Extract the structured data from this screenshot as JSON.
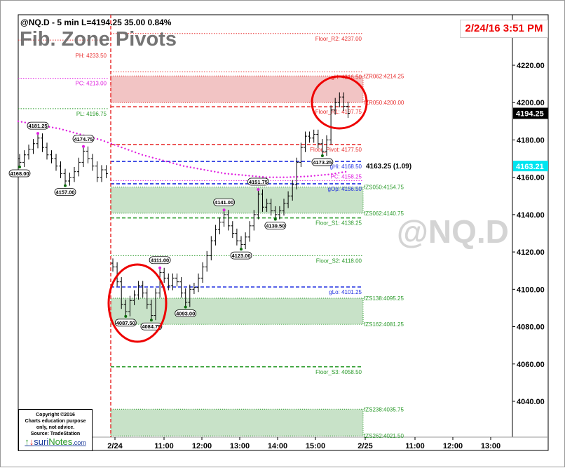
{
  "header": {
    "symbol_line": "@NQ.D - 5 min  L=4194.25  35.00  0.84%",
    "title": "Fib. Zone Pivots",
    "timestamp": "2/24/16 3:51 PM",
    "watermark": "@NQ.D"
  },
  "copyright": {
    "lines": [
      "Copyright ©2016",
      "Charts education purpose",
      "only, not advice.",
      "Source: TradeStation"
    ],
    "logo_a": "suri",
    "logo_b": "Notes",
    "logo_c": ".com"
  },
  "chart_data": {
    "type": "ohlc-bar",
    "ylim": [
      4017,
      4237
    ],
    "y_ticks": [
      "4220.00",
      "4200.00",
      "4180.00",
      "4160.00",
      "4140.00",
      "4120.00",
      "4100.00",
      "4080.00",
      "4060.00",
      "4040.00"
    ],
    "x_ticks": [
      "2/24",
      "11:00",
      "12:00",
      "13:00",
      "14:00",
      "15:00",
      "2/25",
      "11:00",
      "12:00",
      "13:00"
    ],
    "last_price": "4194.25",
    "ma_value": "4163.21",
    "colors": {
      "resistance": "#e83030",
      "support": "#2a9a2a",
      "gann": "#2030e0",
      "ma": "#e020e0",
      "res_zone": "#f2c4c4",
      "sup_zone": "#c8e2c8",
      "last_cyan": "#00e5f0"
    },
    "prior_day_closes": [
      4168,
      4172,
      4175,
      4178,
      4181,
      4176,
      4172,
      4170,
      4166,
      4162,
      4158,
      4160,
      4163,
      4168,
      4174,
      4170,
      4166,
      4160,
      4164,
      4162
    ],
    "today_closes": [
      4112,
      4104,
      4092,
      4088,
      4094,
      4097,
      4102,
      4098,
      4092,
      4086,
      4098,
      4109,
      4106,
      4102,
      4106,
      4104,
      4098,
      4093,
      4100,
      4101,
      4106,
      4112,
      4118,
      4126,
      4132,
      4136,
      4140,
      4134,
      4130,
      4126,
      4124,
      4128,
      4134,
      4140,
      4151,
      4144,
      4146,
      4142,
      4140,
      4142,
      4146,
      4150,
      4156,
      4168,
      4176,
      4182,
      4181,
      4183,
      4178,
      4174,
      4180,
      4196,
      4200,
      4203,
      4198,
      4194.25
    ],
    "ma_points": [
      4190,
      4188,
      4186,
      4183,
      4180,
      4176,
      4172,
      4169,
      4166,
      4164,
      4162,
      4161,
      4160,
      4160,
      4160.5,
      4161.5,
      4163.21
    ],
    "swing_labels": [
      {
        "t": "prior",
        "i": 4,
        "v": "4181.25",
        "kind": "high"
      },
      {
        "t": "prior",
        "i": 10,
        "v": "4157.00",
        "kind": "low"
      },
      {
        "t": "prior",
        "i": 14,
        "v": "4174.75",
        "kind": "high"
      },
      {
        "t": "prior",
        "i": 0,
        "v": "4168.00",
        "kind": "low"
      },
      {
        "t": "today",
        "i": 3,
        "v": "4087.50",
        "kind": "low"
      },
      {
        "t": "today",
        "i": 9,
        "v": "4084.75",
        "kind": "low"
      },
      {
        "t": "today",
        "i": 11,
        "v": "4111.00",
        "kind": "high"
      },
      {
        "t": "today",
        "i": 17,
        "v": "4093.00",
        "kind": "low"
      },
      {
        "t": "today",
        "i": 26,
        "v": "4141.00",
        "kind": "high"
      },
      {
        "t": "today",
        "i": 30,
        "v": "4123.00",
        "kind": "low"
      },
      {
        "t": "today",
        "i": 34,
        "v": "4151.75",
        "kind": "high"
      },
      {
        "t": "today",
        "i": 38,
        "v": "4139.50",
        "kind": "low"
      },
      {
        "t": "today",
        "i": 49,
        "v": "4173.25",
        "kind": "low"
      }
    ],
    "prior_levels": [
      {
        "label": "PH: 4233.50",
        "value": 4233.5,
        "color": "resistance"
      },
      {
        "label": "PC: 4213.00",
        "value": 4213.0,
        "color": "ma"
      },
      {
        "label": "PL: 4196.75",
        "value": 4196.75,
        "color": "support"
      }
    ],
    "levels": [
      {
        "label": "Floor_R2: 4237.00",
        "value": 4237.0,
        "color": "resistance",
        "style": "dot"
      },
      {
        "label": "gH: 4216.50",
        "value": 4216.5,
        "color": "resistance",
        "style": "dot"
      },
      {
        "label": "Floor_R1: 4197.75",
        "value": 4197.75,
        "color": "resistance",
        "style": "dash"
      },
      {
        "label": "Floor_Pivot: 4177.50",
        "value": 4177.5,
        "color": "resistance",
        "style": "dash"
      },
      {
        "label": "gHi: 4168.50",
        "value": 4168.5,
        "color": "gann",
        "style": "dash"
      },
      {
        "label": "PC: 4158.25",
        "value": 4158.25,
        "color": "ma",
        "style": "dot"
      },
      {
        "label": "gOp: 4156.50",
        "value": 4156.5,
        "color": "gann",
        "style": "dash"
      },
      {
        "label": "Floor_S1: 4138.25",
        "value": 4138.25,
        "color": "support",
        "style": "dash"
      },
      {
        "label": "Floor_S2: 4118.00",
        "value": 4118.0,
        "color": "support",
        "style": "dot"
      },
      {
        "label": "gLo: 4101.25",
        "value": 4101.25,
        "color": "gann",
        "style": "dash"
      },
      {
        "label": "Floor_S3: 4058.50",
        "value": 4058.5,
        "color": "support",
        "style": "dash"
      }
    ],
    "zones": [
      {
        "top_label": "fZR062:4214.25",
        "top": 4214.25,
        "bottom_label": "fZR050:4200.00",
        "bottom": 4200.0,
        "kind": "res"
      },
      {
        "top_label": "fZS050:4154.75",
        "top": 4154.75,
        "bottom_label": "fZS062:4140.75",
        "bottom": 4140.75,
        "kind": "sup"
      },
      {
        "top_label": "fZS138:4095.25",
        "top": 4095.25,
        "bottom_label": "fZS162:4081.25",
        "bottom": 4081.25,
        "kind": "sup"
      },
      {
        "top_label": "fZS238:4035.75",
        "top": 4035.75,
        "bottom_label": "fZS262:4021.50",
        "bottom": 4021.5,
        "kind": "sup"
      }
    ],
    "annotation": "4163.25 (1.09)"
  }
}
